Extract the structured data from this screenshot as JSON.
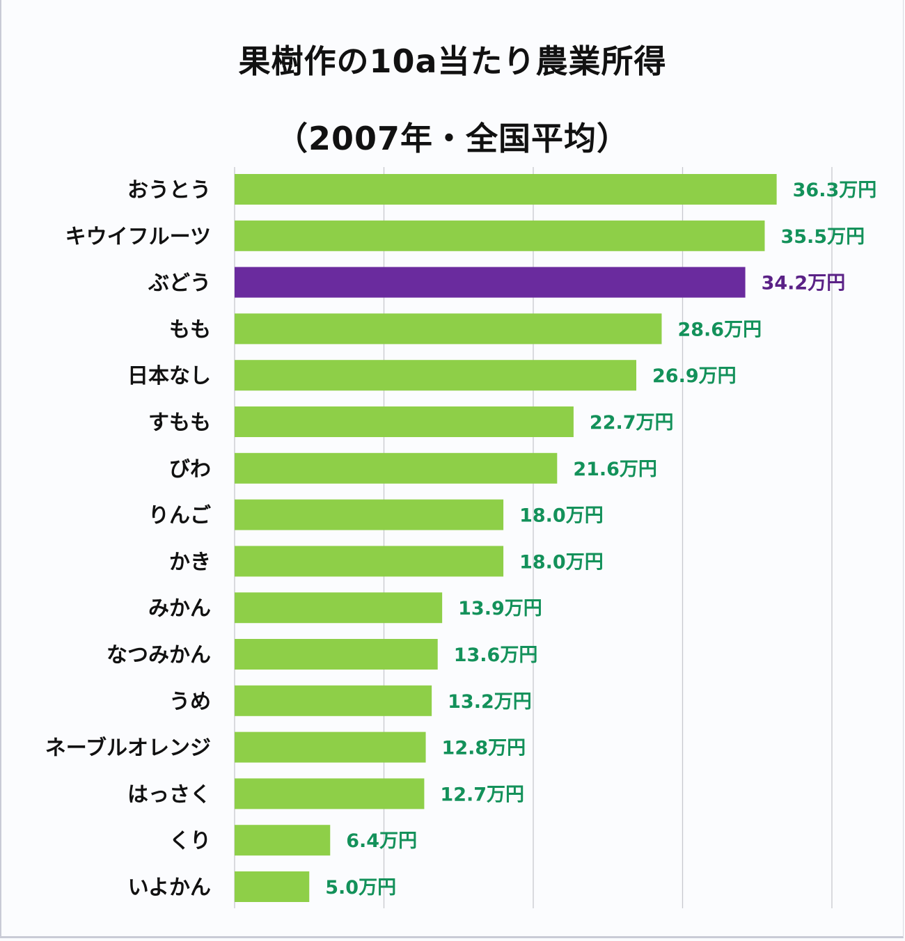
{
  "chart_data": {
    "type": "bar",
    "orientation": "horizontal",
    "title": "果樹作の10a当たり農業所得",
    "subtitle": "（2007年・全国平均）",
    "xlabel": "",
    "ylabel": "",
    "unit": "万円",
    "xlim": [
      0,
      40
    ],
    "x_gridlines": [
      0,
      10,
      20,
      30,
      40
    ],
    "grid": true,
    "legend": "none",
    "categories": [
      "おうとう",
      "キウイフルーツ",
      "ぶどう",
      "もも",
      "日本なし",
      "すもも",
      "びわ",
      "りんご",
      "かき",
      "みかん",
      "なつみかん",
      "うめ",
      "ネーブルオレンジ",
      "はっさく",
      "くり",
      "いよかん"
    ],
    "values": [
      36.3,
      35.5,
      34.2,
      28.6,
      26.9,
      22.7,
      21.6,
      18.0,
      18.0,
      13.9,
      13.6,
      13.2,
      12.8,
      12.7,
      6.4,
      5.0
    ],
    "data_labels": [
      "36.3万円",
      "35.5万円",
      "34.2万円",
      "28.6万円",
      "26.9万円",
      "22.7万円",
      "21.6万円",
      "18.0万円",
      "18.0万円",
      "13.9万円",
      "13.6万円",
      "13.2万円",
      "12.8万円",
      "12.7万円",
      "6.4万円",
      "5.0万円"
    ],
    "highlight_index": 2,
    "colors": {
      "bar": "#8ecf48",
      "bar_highlight": "#6a2b9e",
      "label": "#13915a",
      "label_highlight": "#5a2186",
      "grid": "#c7c8ce"
    }
  }
}
